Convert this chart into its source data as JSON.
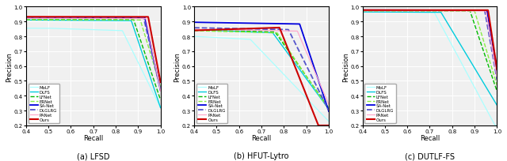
{
  "title_a": "(a) LFSD",
  "title_b": "(b) HFUT-Lytro",
  "title_c": "(c) DUTLF-FS",
  "xlabel": "Recall",
  "ylabel": "Precision",
  "xlim": [
    0.4,
    1.0
  ],
  "ylim": [
    0.2,
    1.0
  ],
  "legend_labels": [
    "MoLF",
    "DLFS",
    "LFNet",
    "ERNet",
    "SA-Net",
    "DLGLRG",
    "PANet",
    "Ours"
  ],
  "colors": {
    "MoLF": "#aaffff",
    "DLFS": "#00ccdd",
    "LFNet": "#00bb00",
    "ERNet": "#88ee44",
    "SA-Net": "#0000dd",
    "DLGLRG": "#5555cc",
    "PANet": "#ffaacc",
    "Ours": "#cc0000"
  },
  "linestyles": {
    "MoLF": "-",
    "DLFS": "-",
    "LFNet": "--",
    "ERNet": "--",
    "SA-Net": "-",
    "DLGLRG": "--",
    "PANet": "-",
    "Ours": "-"
  },
  "linewidths": {
    "MoLF": 0.9,
    "DLFS": 1.0,
    "LFNet": 1.0,
    "ERNet": 1.0,
    "SA-Net": 1.3,
    "DLGLRG": 1.3,
    "PANet": 0.9,
    "Ours": 1.5
  },
  "xticks": [
    0.4,
    0.5,
    0.6,
    0.7,
    0.8,
    0.9,
    1.0
  ],
  "yticks": [
    0.2,
    0.3,
    0.4,
    0.5,
    0.6,
    0.7,
    0.8,
    0.9,
    1.0
  ],
  "background": "#f0f0f0"
}
